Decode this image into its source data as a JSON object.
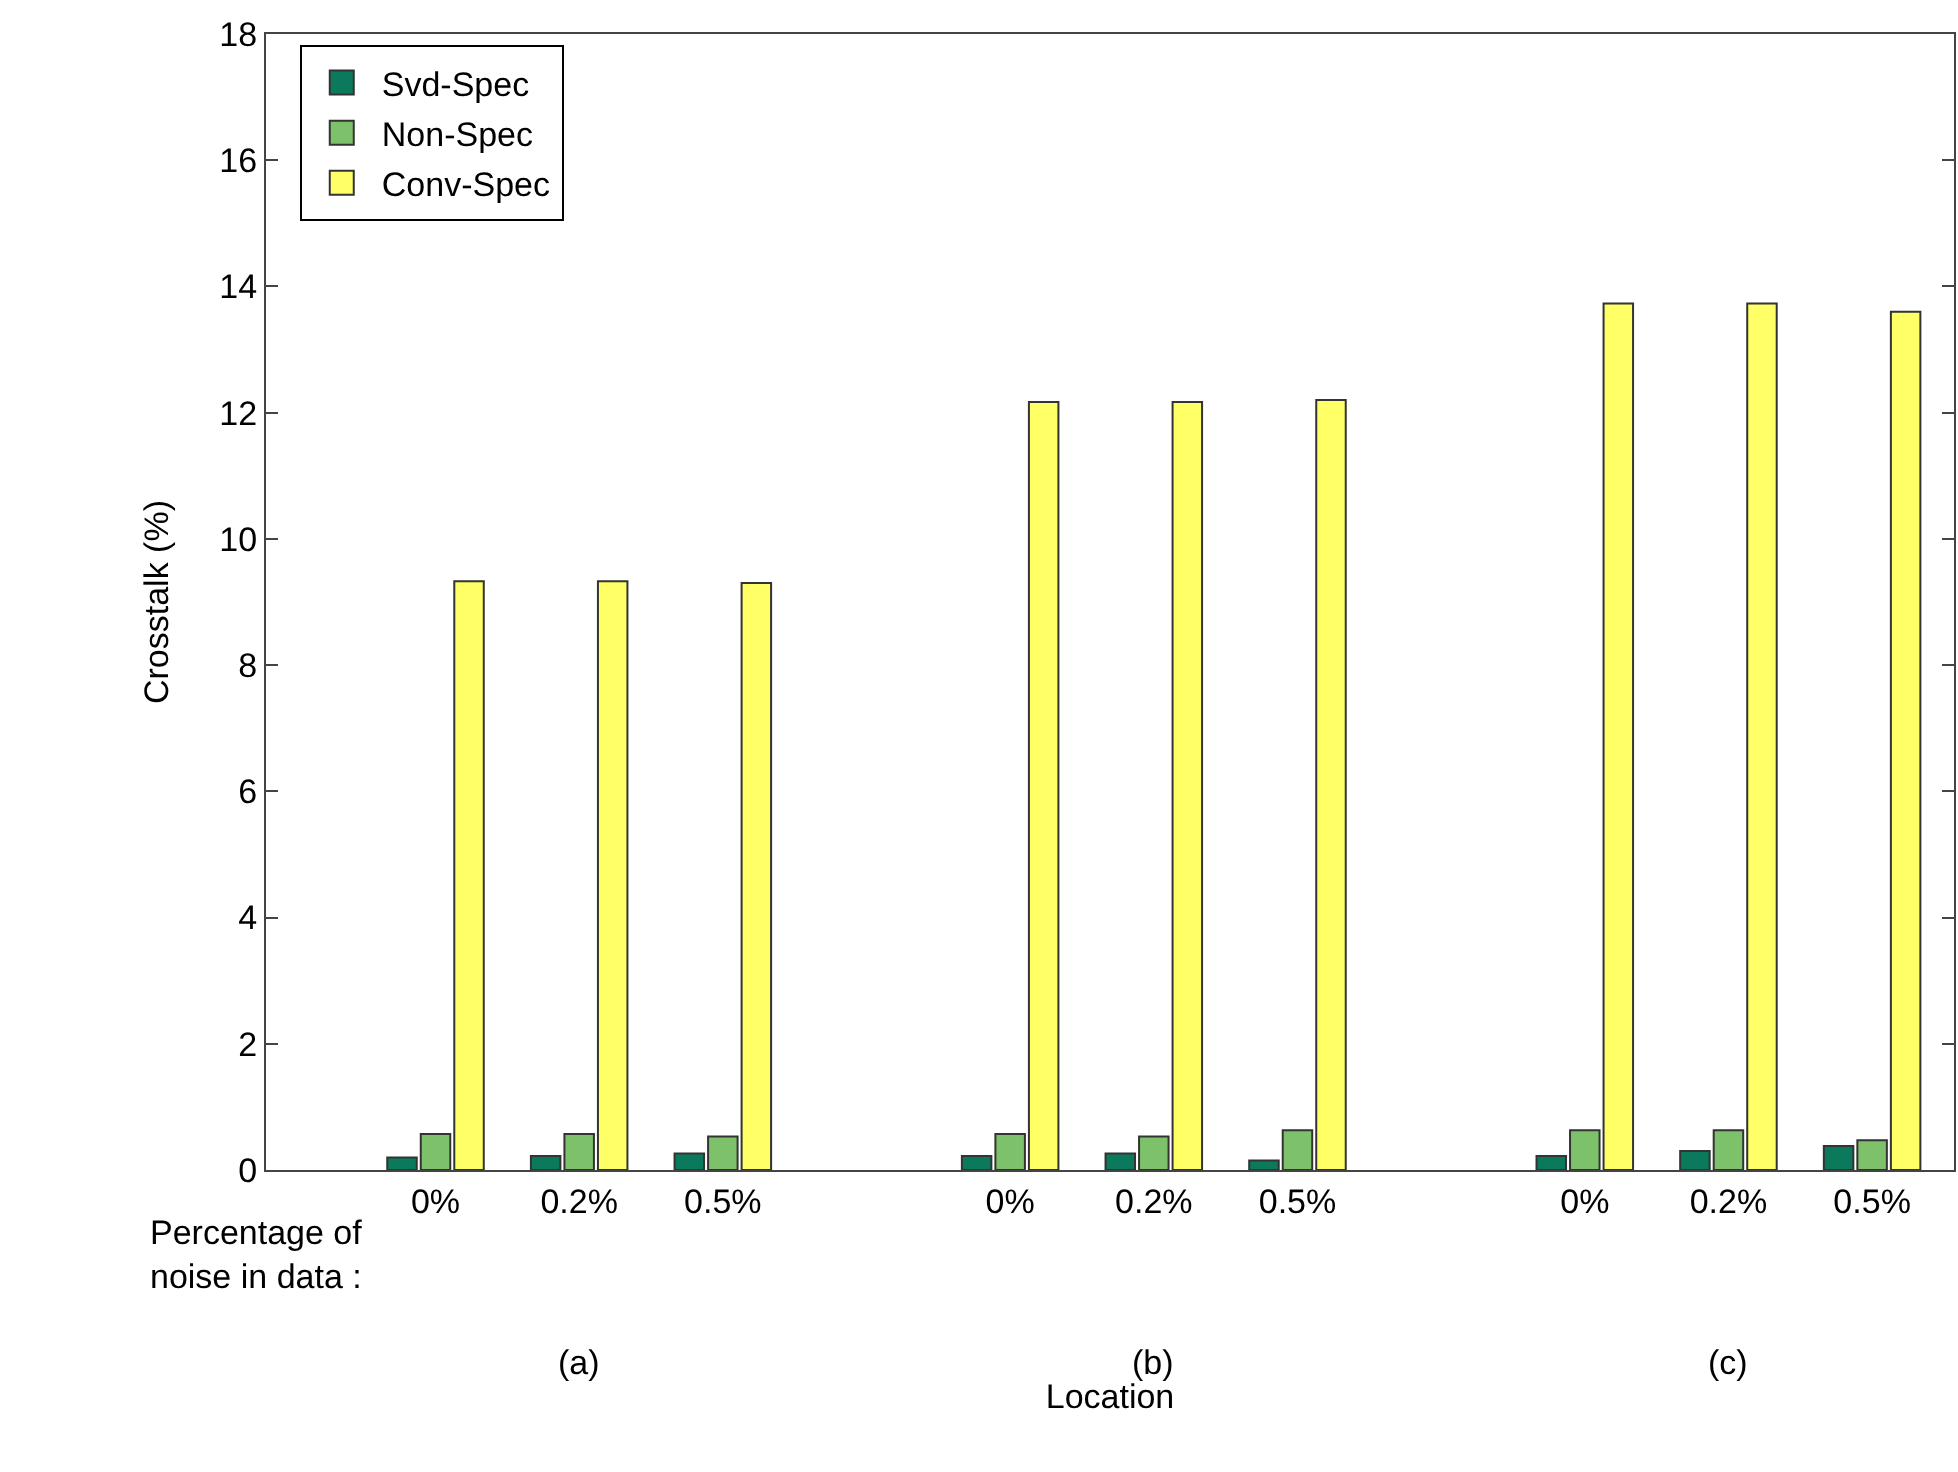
{
  "chart_data": {
    "type": "bar",
    "ylabel": "Crosstalk (%)",
    "xlabel": "Location",
    "categories": [
      "0%",
      "0.2%",
      "0.5%",
      null,
      "0%",
      "0.2%",
      "0.5%",
      null,
      "0%",
      "0.2%",
      "0.5%"
    ],
    "series": [
      {
        "name": "Svd-Spec",
        "color": "#0b7a5c",
        "values": [
          0.2,
          0.22,
          0.26,
          null,
          0.22,
          0.26,
          0.15,
          null,
          0.22,
          0.3,
          0.38
        ]
      },
      {
        "name": "Non-Spec",
        "color": "#7dc26a",
        "values": [
          0.57,
          0.57,
          0.53,
          null,
          0.57,
          0.53,
          0.63,
          null,
          0.63,
          0.63,
          0.47
        ]
      },
      {
        "name": "Conv-Spec",
        "color": "#ffff66",
        "values": [
          9.33,
          9.33,
          9.3,
          null,
          12.17,
          12.17,
          12.2,
          null,
          13.73,
          13.73,
          13.6
        ]
      }
    ],
    "ylim": [
      0,
      18
    ],
    "yticks": [
      0,
      2,
      4,
      6,
      8,
      10,
      12,
      14,
      16,
      18
    ],
    "grid": false,
    "legend": "top left",
    "annotations": [
      "Percentage of\nnoise in data :",
      "(a)",
      "(b)",
      "(c)"
    ]
  }
}
